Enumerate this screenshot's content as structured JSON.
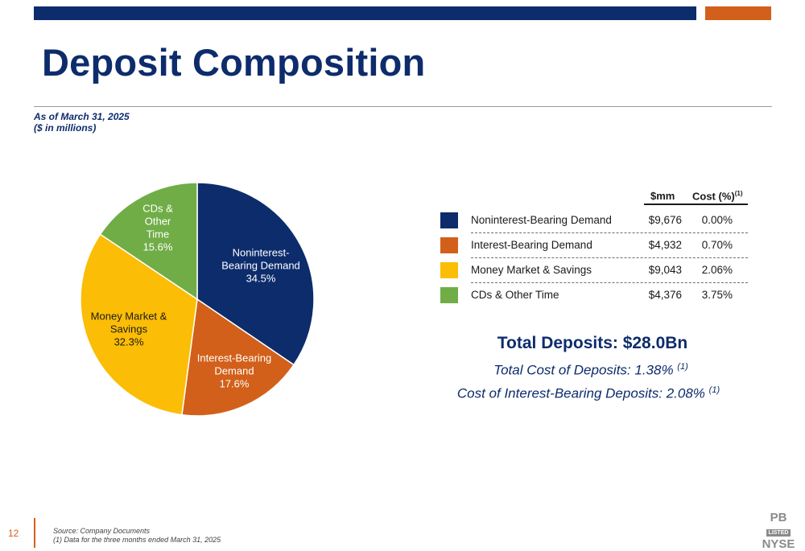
{
  "slide": {
    "title": "Deposit Composition",
    "subtitle_line1": "As of March 31, 2025",
    "subtitle_line2": "($ in millions)",
    "page_number": "12",
    "footer_line1": "Source: Company Documents",
    "footer_line2": "(1)    Data for the three months ended March 31, 2025",
    "logo": {
      "line1": "PB",
      "line2": "LISTED",
      "line3": "NYSE"
    }
  },
  "colors": {
    "navy": "#0d2c6c",
    "orange": "#d2601a",
    "yellow": "#fbbd05",
    "green": "#70ad47"
  },
  "table": {
    "col_mm": "$mm",
    "col_cost": "Cost (%)",
    "col_cost_note": "(1)",
    "rows": [
      {
        "label": "Noninterest-Bearing Demand",
        "mm": "$9,676",
        "cost": "0.00%",
        "color": "#0d2c6c"
      },
      {
        "label": "Interest-Bearing Demand",
        "mm": "$4,932",
        "cost": "0.70%",
        "color": "#d2601a"
      },
      {
        "label": "Money Market & Savings",
        "mm": "$9,043",
        "cost": "2.06%",
        "color": "#fbbd05"
      },
      {
        "label": "CDs & Other Time",
        "mm": "$4,376",
        "cost": "3.75%",
        "color": "#70ad47"
      }
    ]
  },
  "summary": {
    "total": "Total Deposits: $28.0Bn",
    "total_cost": "Total Cost of Deposits: 1.38%",
    "total_cost_note": "(1)",
    "ib_cost": "Cost of Interest-Bearing Deposits: 2.08%",
    "ib_cost_note": "(1)"
  },
  "chart_data": {
    "type": "pie",
    "categories": [
      "Noninterest-Bearing Demand",
      "Interest-Bearing Demand",
      "Money Market & Savings",
      "CDs & Other Time"
    ],
    "values": [
      34.5,
      17.6,
      32.3,
      15.6
    ],
    "colors": [
      "#0d2c6c",
      "#d2601a",
      "#fbbd05",
      "#70ad47"
    ],
    "label_colors": [
      "#ffffff",
      "#ffffff",
      "#1a1a1a",
      "#ffffff"
    ],
    "labels": [
      [
        "Noninterest-",
        "Bearing Demand",
        "34.5%"
      ],
      [
        "Interest-Bearing",
        "Demand",
        "17.6%"
      ],
      [
        "Money Market &",
        "Savings",
        "32.3%"
      ],
      [
        "CDs &",
        "Other",
        "Time",
        "15.6%"
      ]
    ]
  }
}
